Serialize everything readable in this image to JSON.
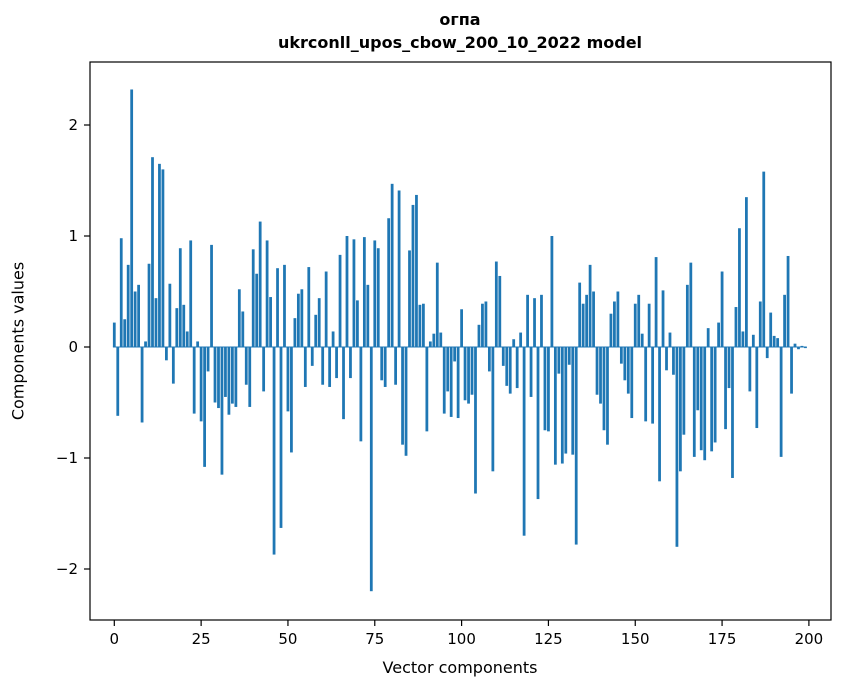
{
  "page": {
    "background": "#ffffff"
  },
  "chart_data": {
    "type": "bar",
    "title_line1": "огпа",
    "title_line2": "ukrconll_upos_cbow_200_10_2022 model",
    "xlabel": "Vector components",
    "ylabel": "Components values",
    "x_ticks": [
      0,
      25,
      50,
      75,
      100,
      125,
      150,
      175,
      200
    ],
    "y_ticks": [
      -2,
      -1,
      0,
      1,
      2
    ],
    "xlim": [
      -7,
      206
    ],
    "ylim": [
      -2.46,
      2.57
    ],
    "grid": false,
    "legend": "none",
    "bar_color": "#1f77b4",
    "axis_color": "#000000",
    "n_components": 200,
    "x": "component indices 0..199",
    "values": [
      0.22,
      -0.62,
      0.98,
      0.25,
      0.74,
      2.32,
      0.5,
      0.56,
      -0.68,
      0.05,
      0.75,
      1.71,
      0.44,
      1.65,
      1.6,
      -0.12,
      0.57,
      -0.33,
      0.35,
      0.89,
      0.38,
      0.14,
      0.96,
      -0.6,
      0.05,
      -0.67,
      -1.08,
      -0.22,
      0.92,
      -0.5,
      -0.55,
      -1.15,
      -0.45,
      -0.61,
      -0.51,
      -0.54,
      0.52,
      0.32,
      -0.34,
      -0.54,
      0.88,
      0.66,
      1.13,
      -0.4,
      0.96,
      0.45,
      -1.87,
      0.71,
      -1.63,
      0.74,
      -0.58,
      -0.95,
      0.26,
      0.48,
      0.52,
      -0.36,
      0.72,
      -0.17,
      0.29,
      0.44,
      -0.34,
      0.68,
      -0.36,
      0.14,
      -0.28,
      0.83,
      -0.65,
      1.0,
      -0.28,
      0.97,
      0.42,
      -0.85,
      0.99,
      0.56,
      -2.2,
      0.96,
      0.89,
      -0.3,
      -0.36,
      1.16,
      1.47,
      -0.34,
      1.41,
      -0.88,
      -0.98,
      0.87,
      1.28,
      1.37,
      0.38,
      0.39,
      -0.76,
      0.05,
      0.12,
      0.76,
      0.13,
      -0.6,
      -0.4,
      -0.63,
      -0.13,
      -0.64,
      0.34,
      -0.48,
      -0.51,
      -0.43,
      -1.32,
      0.2,
      0.39,
      0.41,
      -0.22,
      -1.12,
      0.77,
      0.64,
      -0.17,
      -0.35,
      -0.42,
      0.07,
      -0.37,
      0.13,
      -1.7,
      0.47,
      -0.45,
      0.44,
      -1.37,
      0.47,
      -0.75,
      -0.76,
      1.0,
      -1.06,
      -0.24,
      -1.05,
      -0.96,
      -0.16,
      -0.97,
      -1.78,
      0.58,
      0.39,
      0.47,
      0.74,
      0.5,
      -0.43,
      -0.51,
      -0.75,
      -0.88,
      0.3,
      0.41,
      0.5,
      -0.15,
      -0.3,
      -0.42,
      -0.64,
      0.39,
      0.47,
      0.12,
      -0.67,
      0.39,
      -0.69,
      0.81,
      -1.21,
      0.51,
      -0.21,
      0.13,
      -0.25,
      -1.8,
      -1.12,
      -0.79,
      0.56,
      0.76,
      -0.99,
      -0.57,
      -0.93,
      -1.02,
      0.17,
      -0.94,
      -0.86,
      0.22,
      0.68,
      -0.74,
      -0.37,
      -1.18,
      0.36,
      1.07,
      0.14,
      1.35,
      -0.4,
      0.11,
      -0.73,
      0.41,
      1.58,
      -0.1,
      0.31,
      0.1,
      0.08,
      -0.99,
      0.47,
      0.82,
      -0.42,
      0.03,
      -0.02,
      0.01,
      -0.01
    ]
  }
}
